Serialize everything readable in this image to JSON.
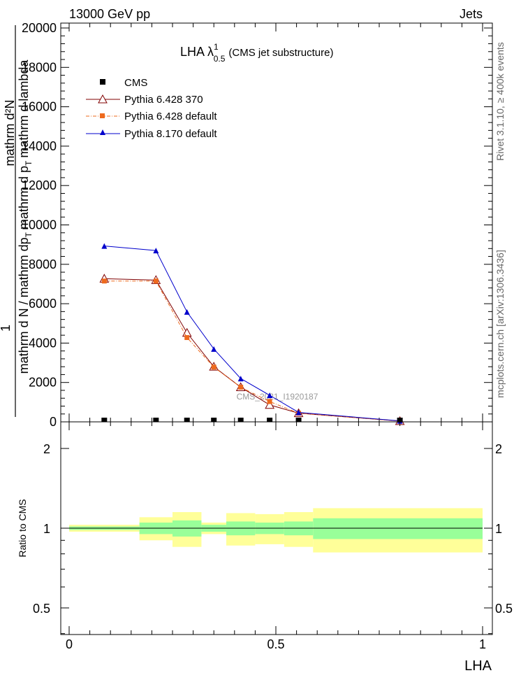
{
  "header": {
    "left_label": "13000 GeV pp",
    "right_label": "Jets"
  },
  "side_labels": {
    "rivet": "Rivet 3.1.10, ≥ 400k events",
    "mcplots": "mcplots.cern.ch [arXiv:1306.3436]"
  },
  "chart_data": [
    {
      "panel": "main",
      "type": "line",
      "title_main": "LHA λ",
      "title_sup": "1",
      "title_sub": "0.5",
      "title_rest": "(CMS jet substructure)",
      "watermark": "CMS_2021_I1920187",
      "ylabel_numerator": "mathrm d²N",
      "ylabel_factor": "1",
      "ylabel_denominator_main": "mathrm d N / mathrm dp",
      "ylabel_denominator_sub": "T",
      "ylabel_denominator_rest": "mathrm d p",
      "ylabel_tail_sub": "T",
      "ylabel_tail": "mathrm d lambda",
      "xlim": [
        -0.02,
        1.02
      ],
      "ylim": [
        0,
        20000
      ],
      "y_ticks": [
        "0",
        "2000",
        "4000",
        "6000",
        "8000",
        "10000",
        "12000",
        "14000",
        "16000",
        "18000",
        "20000"
      ],
      "legend_position": "top-left",
      "series": [
        {
          "name": "CMS",
          "color": "#000000",
          "marker": "square",
          "x": [
            0.085,
            0.21,
            0.285,
            0.35,
            0.415,
            0.485,
            0.555,
            0.8
          ],
          "y": [
            0,
            0,
            0,
            0,
            0,
            0,
            0,
            0
          ]
        },
        {
          "name": "Pythia 6.428 370",
          "color": "#800000",
          "marker": "open-triangle",
          "x": [
            0.085,
            0.21,
            0.285,
            0.35,
            0.415,
            0.485,
            0.555,
            0.8
          ],
          "y": [
            7270,
            7200,
            4520,
            2800,
            1760,
            860,
            440,
            40
          ]
        },
        {
          "name": "Pythia 6.428 default",
          "color": "#ee6a1e",
          "marker": "square",
          "x": [
            0.085,
            0.21,
            0.285,
            0.35,
            0.415,
            0.485,
            0.555,
            0.8
          ],
          "y": [
            7150,
            7150,
            4280,
            2780,
            1760,
            1030,
            440,
            40
          ]
        },
        {
          "name": "Pythia 8.170 default",
          "color": "#0000cc",
          "marker": "filled-triangle",
          "x": [
            0.085,
            0.21,
            0.285,
            0.35,
            0.415,
            0.485,
            0.555,
            0.8
          ],
          "y": [
            8930,
            8700,
            5580,
            3700,
            2200,
            1350,
            480,
            50
          ]
        }
      ]
    },
    {
      "panel": "ratio",
      "type": "area",
      "ylabel": "Ratio to CMS",
      "xlabel": "LHA",
      "xlim": [
        -0.02,
        1.02
      ],
      "ylim": [
        0.33,
        2.3
      ],
      "x_ticks": [
        "0",
        "0.5",
        "1"
      ],
      "y_ticks": [
        "0.5",
        "1",
        "2"
      ],
      "reference": 1.0,
      "bins": [
        {
          "x0": 0.0,
          "x1": 0.17,
          "stat_lo": 0.985,
          "stat_hi": 1.015,
          "tot_lo": 0.97,
          "tot_hi": 1.03
        },
        {
          "x0": 0.17,
          "x1": 0.25,
          "stat_lo": 0.95,
          "stat_hi": 1.05,
          "tot_lo": 0.9,
          "tot_hi": 1.1
        },
        {
          "x0": 0.25,
          "x1": 0.32,
          "stat_lo": 0.93,
          "stat_hi": 1.07,
          "tot_lo": 0.85,
          "tot_hi": 1.15
        },
        {
          "x0": 0.32,
          "x1": 0.38,
          "stat_lo": 0.97,
          "stat_hi": 1.03,
          "tot_lo": 0.95,
          "tot_hi": 1.05
        },
        {
          "x0": 0.38,
          "x1": 0.45,
          "stat_lo": 0.94,
          "stat_hi": 1.06,
          "tot_lo": 0.86,
          "tot_hi": 1.14
        },
        {
          "x0": 0.45,
          "x1": 0.52,
          "stat_lo": 0.95,
          "stat_hi": 1.05,
          "tot_lo": 0.87,
          "tot_hi": 1.13
        },
        {
          "x0": 0.52,
          "x1": 0.59,
          "stat_lo": 0.94,
          "stat_hi": 1.06,
          "tot_lo": 0.85,
          "tot_hi": 1.15
        },
        {
          "x0": 0.59,
          "x1": 1.0,
          "stat_lo": 0.91,
          "stat_hi": 1.09,
          "tot_lo": 0.81,
          "tot_hi": 1.19
        }
      ],
      "colors": {
        "stat": "#99ff99",
        "total": "#ffff99"
      }
    }
  ]
}
